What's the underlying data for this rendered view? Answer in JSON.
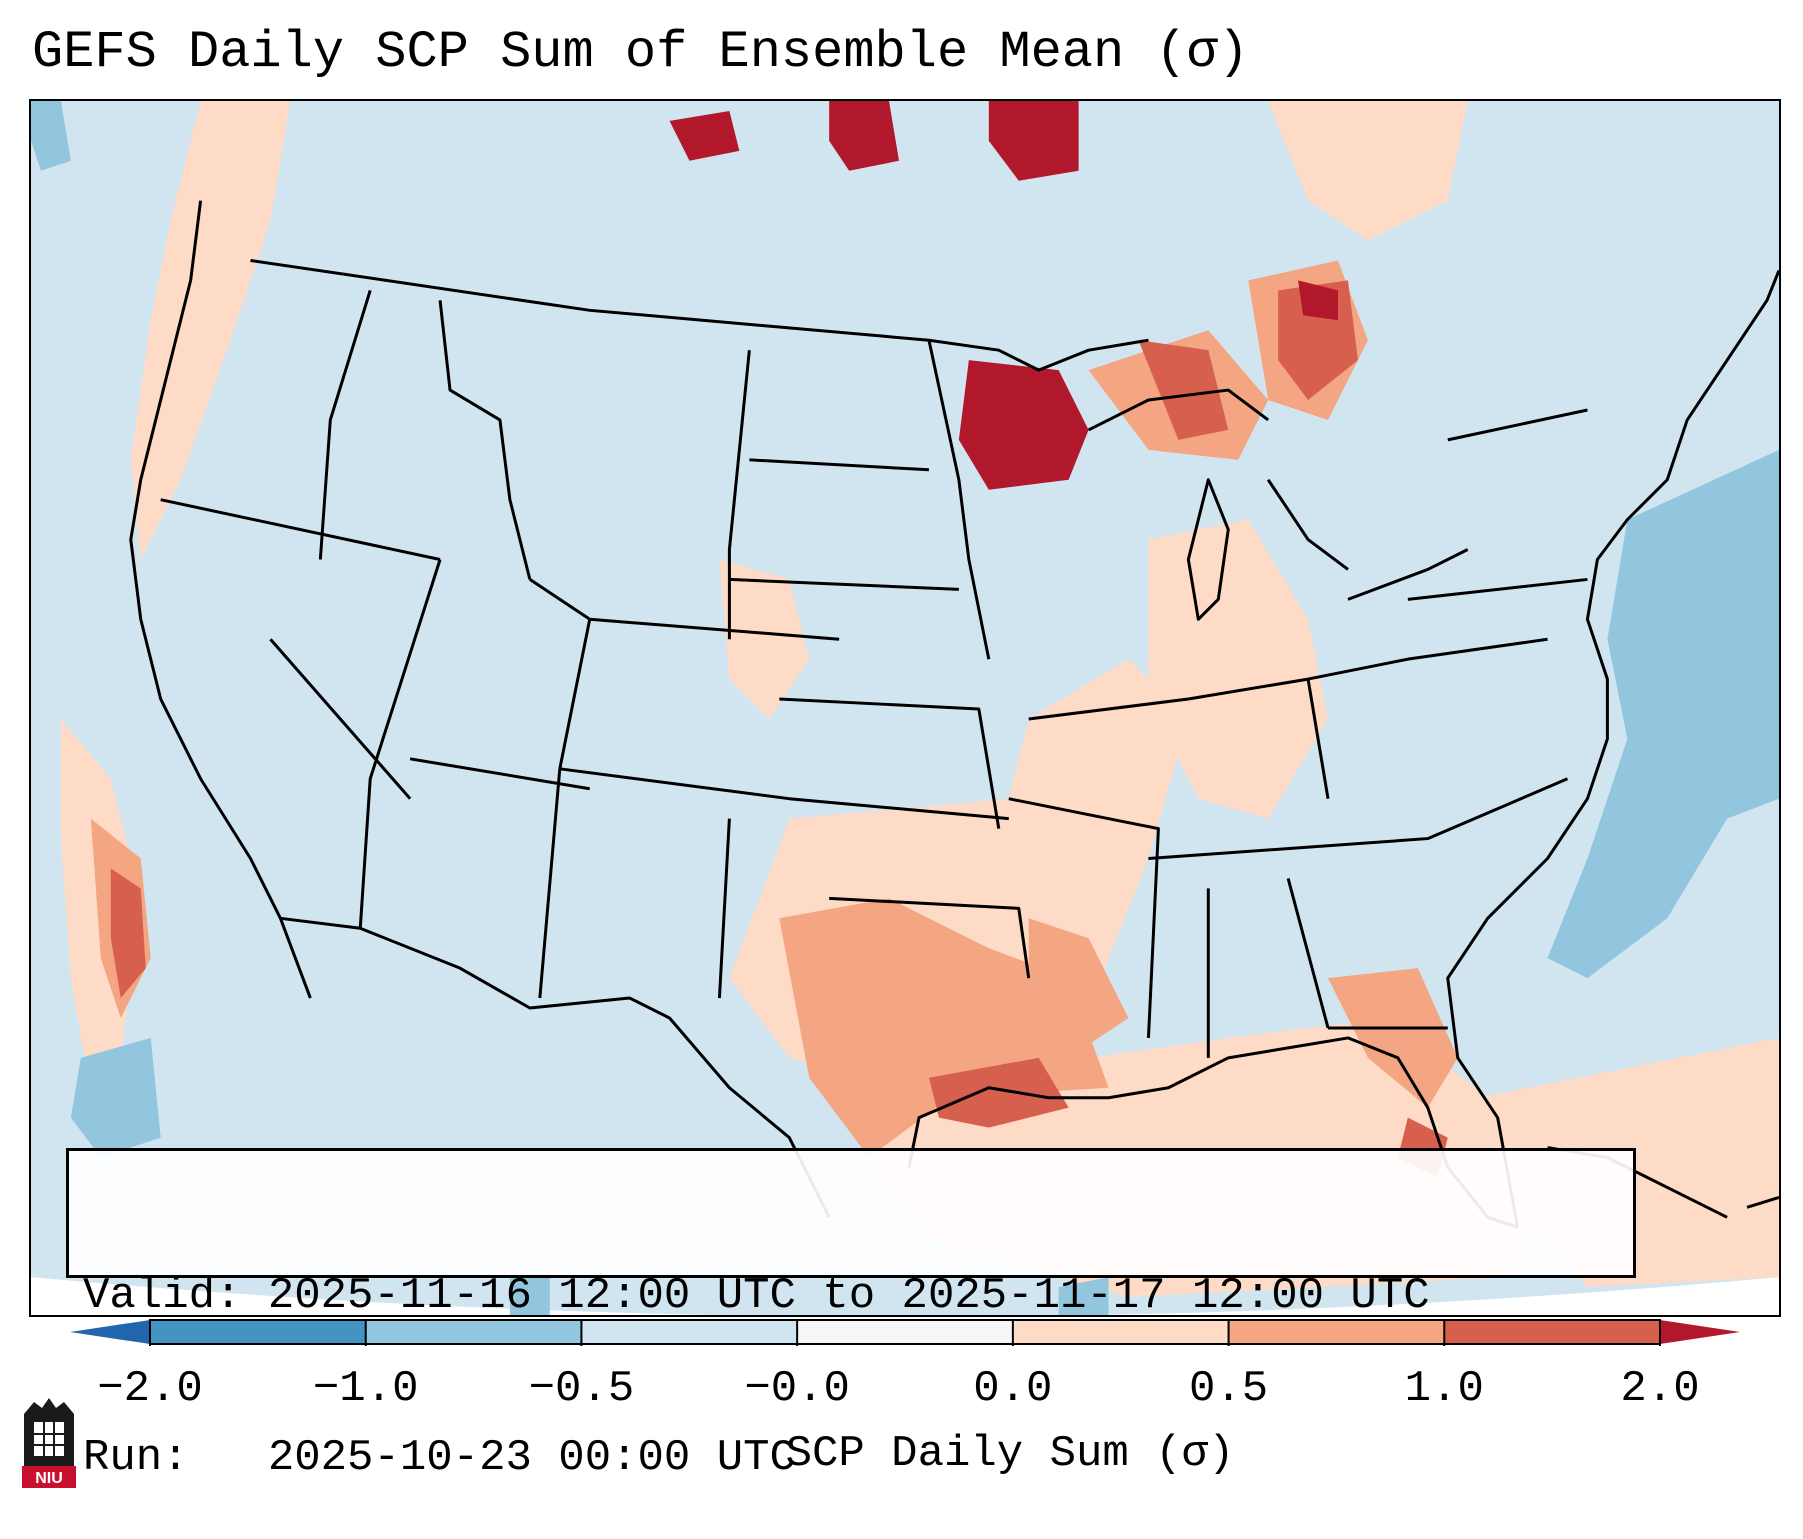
{
  "title": "GEFS Daily SCP Sum of Ensemble Mean (σ)",
  "info": {
    "valid_label": "Valid:",
    "valid_text": "2025-11-16 12:00 UTC to 2025-11-17 12:00 UTC",
    "run_label": "Run:",
    "run_text": "2025-10-23 00:00 UTC"
  },
  "colorbar": {
    "label": "SCP Daily Sum (σ)",
    "ticks": [
      "−2.0",
      "−1.0",
      "−0.5",
      "−0.0",
      "0.0",
      "0.5",
      "1.0",
      "2.0"
    ],
    "bins": [
      {
        "range": "-2.0 to -1.0",
        "color": "#4393c3"
      },
      {
        "range": "-1.0 to -0.5",
        "color": "#92c5de"
      },
      {
        "range": "-0.5 to -0.0",
        "color": "#d1e5f0"
      },
      {
        "range": "-0.0 to 0.0",
        "color": "#f7f7f7"
      },
      {
        "range": "0.0 to 0.5",
        "color": "#fddbc7"
      },
      {
        "range": "0.5 to 1.0",
        "color": "#f4a582"
      },
      {
        "range": "1.0 to 2.0",
        "color": "#d6604d"
      }
    ],
    "under_color": "#2166ac",
    "over_color": "#b2182b"
  },
  "logo": {
    "text": "NIU"
  }
}
